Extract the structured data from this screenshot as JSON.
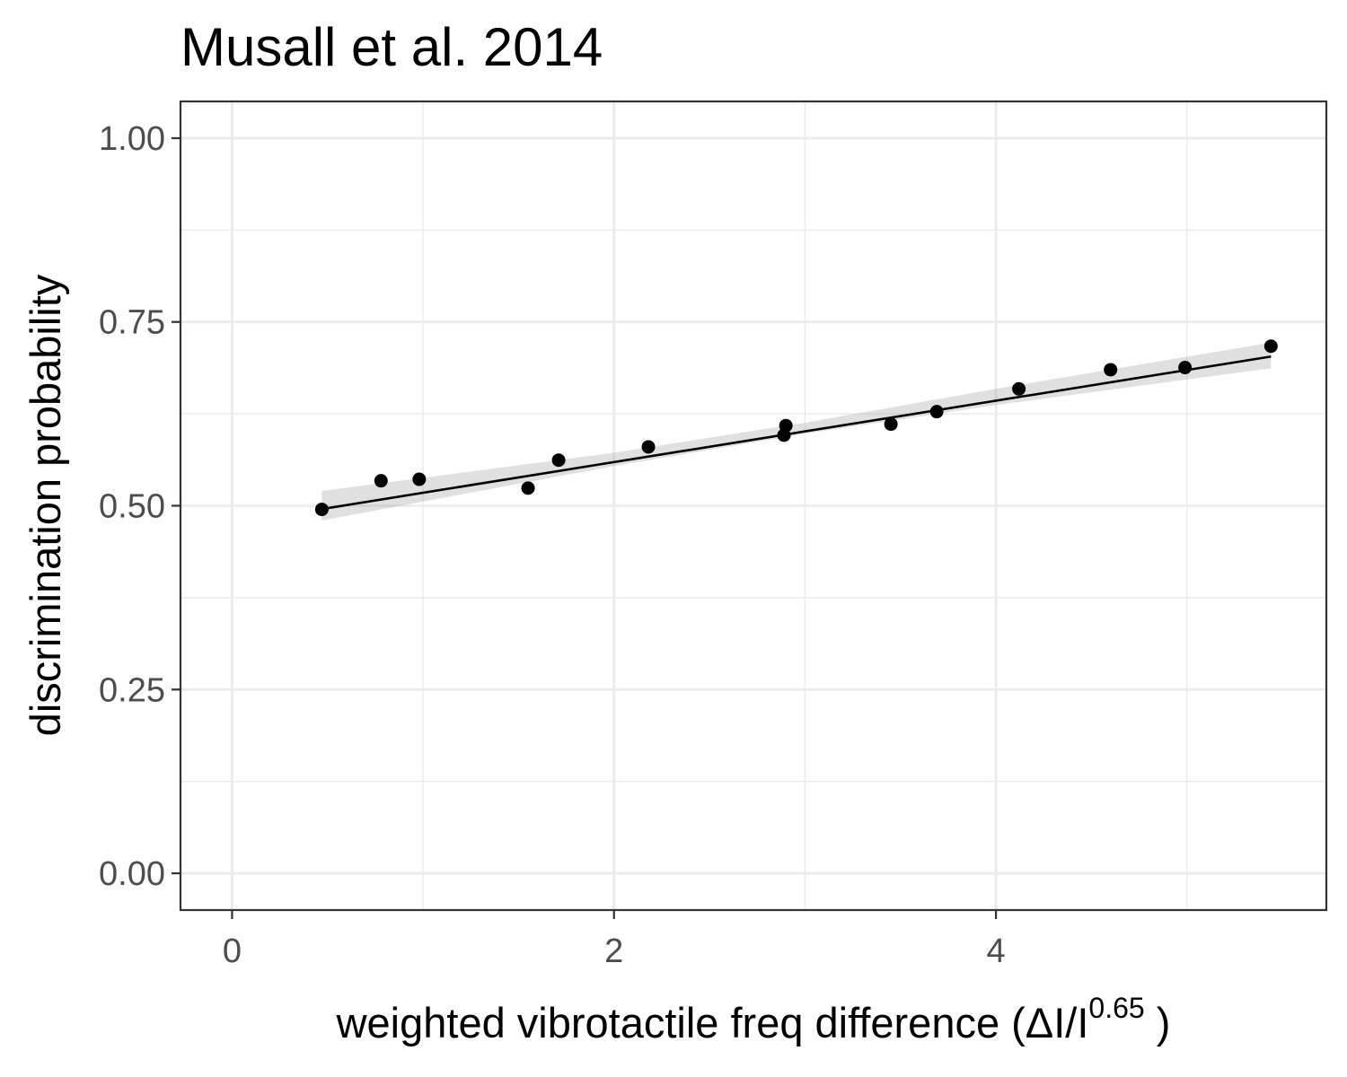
{
  "chart_data": {
    "type": "scatter",
    "title": "Musall et al. 2014",
    "xlabel": {
      "prefix": "weighted  vibrotactile freq  difference (ΔI/I",
      "superscript": "0.65",
      "suffix": " )"
    },
    "ylabel": "discrimination probability",
    "xlim": [
      -0.27,
      5.73
    ],
    "ylim": [
      -0.05,
      1.05
    ],
    "x_ticks": [
      0,
      2,
      4
    ],
    "x_tick_labels": [
      "0",
      "2",
      "4"
    ],
    "x_minor_ticks": [
      1,
      3,
      5
    ],
    "y_ticks": [
      0,
      0.25,
      0.5,
      0.75,
      1
    ],
    "y_tick_labels": [
      "0.00",
      "0.25",
      "0.50",
      "0.75",
      "1.00"
    ],
    "y_minor_ticks": [
      0.125,
      0.375,
      0.625,
      0.875
    ],
    "grid": true,
    "points": [
      {
        "x": 0.47,
        "y": 0.495
      },
      {
        "x": 0.78,
        "y": 0.534
      },
      {
        "x": 0.98,
        "y": 0.536
      },
      {
        "x": 1.55,
        "y": 0.524
      },
      {
        "x": 1.71,
        "y": 0.562
      },
      {
        "x": 2.18,
        "y": 0.58
      },
      {
        "x": 2.89,
        "y": 0.596
      },
      {
        "x": 2.9,
        "y": 0.609
      },
      {
        "x": 3.45,
        "y": 0.611
      },
      {
        "x": 3.69,
        "y": 0.628
      },
      {
        "x": 4.12,
        "y": 0.659
      },
      {
        "x": 4.6,
        "y": 0.685
      },
      {
        "x": 4.99,
        "y": 0.688
      },
      {
        "x": 5.44,
        "y": 0.717
      }
    ],
    "fit_line": {
      "x": [
        0.47,
        5.44
      ],
      "y": [
        0.4955,
        0.703
      ]
    },
    "confidence_band": {
      "x": [
        0.47,
        2.0,
        3.0,
        4.0,
        5.44
      ],
      "lower": [
        0.48,
        0.554,
        0.598,
        0.637,
        0.687
      ],
      "upper": [
        0.52,
        0.572,
        0.613,
        0.659,
        0.722
      ]
    },
    "colors": {
      "points": "#000000",
      "line": "#000000",
      "band": "#999999",
      "grid": "#ebebeb",
      "panel_border": "#333333",
      "tick_label": "#4d4d4d"
    }
  }
}
